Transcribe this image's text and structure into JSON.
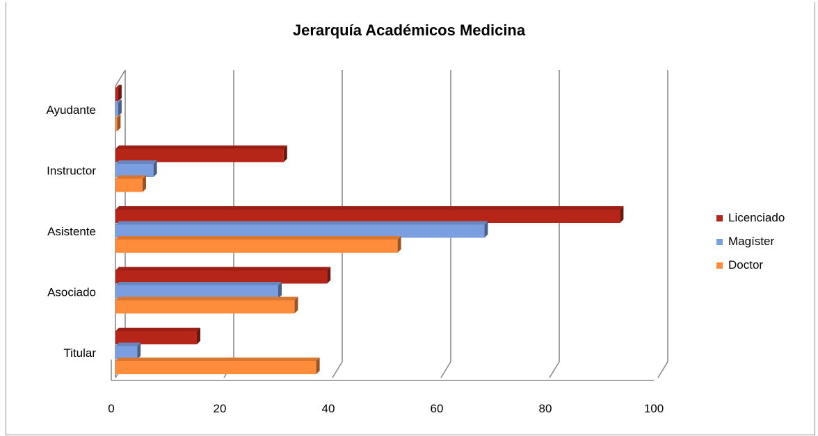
{
  "chart_data": {
    "type": "bar",
    "orientation": "horizontal",
    "title": "Jerarquía Académicos Medicina",
    "categories": [
      "Titular",
      "Asociado",
      "Asistente",
      "Instructor",
      "Ayudante"
    ],
    "series": [
      {
        "name": "Licenciado",
        "color": "#b52518",
        "values": [
          15,
          39,
          93,
          31,
          0.5
        ]
      },
      {
        "name": "Magíster",
        "color": "#7b9ee0",
        "values": [
          4,
          30,
          68,
          7,
          0.5
        ]
      },
      {
        "name": "Doctor",
        "color": "#ff8c3a",
        "values": [
          37,
          33,
          52,
          5,
          0.3
        ]
      }
    ],
    "xlim": [
      0,
      100
    ],
    "xticks": [
      "0",
      "20",
      "40",
      "60",
      "80",
      "100"
    ],
    "grid": true,
    "legend_position": "right"
  }
}
